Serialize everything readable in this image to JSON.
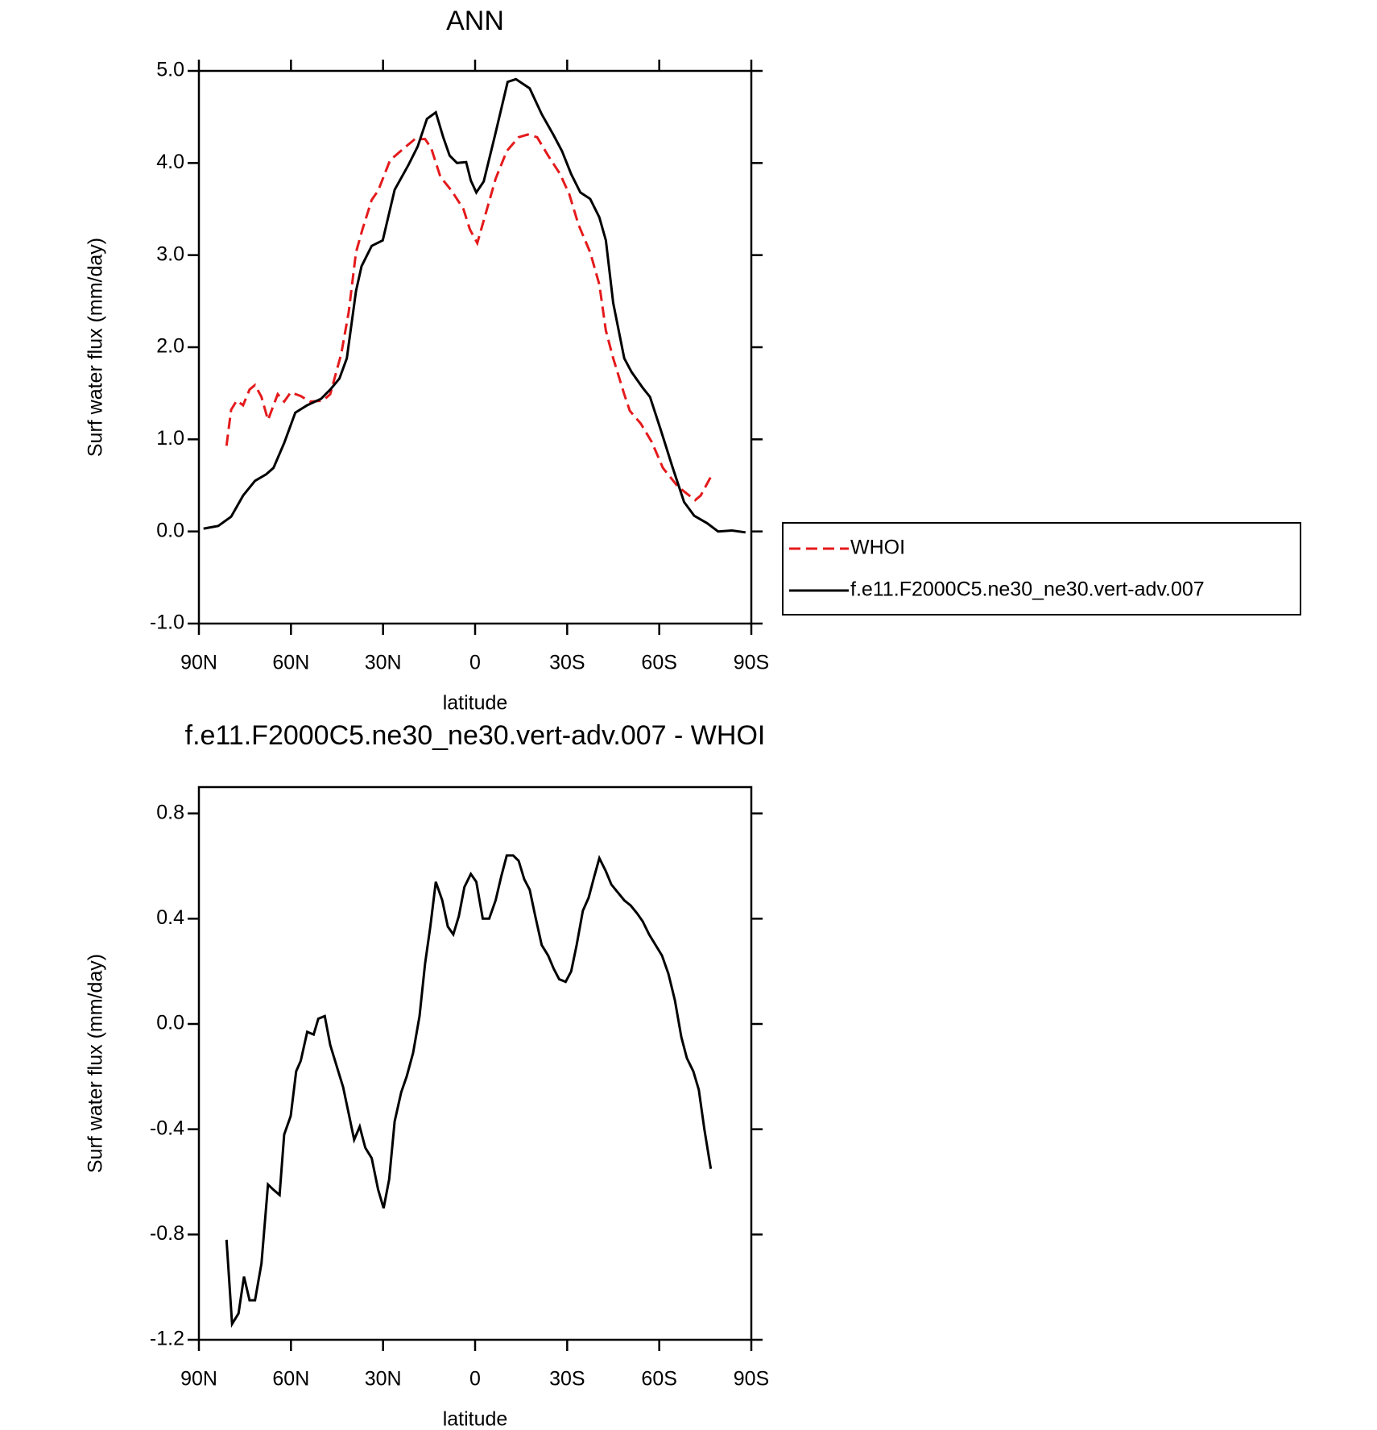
{
  "chart_data": [
    {
      "type": "line",
      "title": "ANN",
      "xlabel": "latitude",
      "ylabel": "Surf water flux (mm/day)",
      "xlim": [
        90,
        -90
      ],
      "xticks": [
        {
          "value": 90,
          "label": "90N"
        },
        {
          "value": 60,
          "label": "60N"
        },
        {
          "value": 30,
          "label": "30N"
        },
        0,
        {
          "value": -30,
          "label": "30S"
        },
        {
          "value": -60,
          "label": "60S"
        },
        {
          "value": -90,
          "label": "90S"
        }
      ],
      "ylim": [
        -1,
        5
      ],
      "yticks": [
        {
          "value": -1,
          "label": "-1.0"
        },
        {
          "value": 0,
          "label": "0.0"
        },
        {
          "value": 1,
          "label": "1.0"
        },
        {
          "value": 2,
          "label": "2.0"
        },
        {
          "value": 3,
          "label": "3.0"
        },
        {
          "value": 4,
          "label": "4.0"
        },
        {
          "value": 5,
          "label": "5.0"
        }
      ],
      "legend": "outside right",
      "series": [
        {
          "name": "WHOI",
          "color": "#e41a1c",
          "dash": true,
          "x": [
            81.0,
            79.5,
            77.7,
            75.6,
            73.5,
            71.7,
            69.6,
            67.5,
            64.3,
            62.2,
            60.1,
            56.8,
            53.8,
            49.6,
            47.2,
            43.6,
            41.2,
            38.8,
            36.7,
            33.7,
            31.6,
            27.7,
            23.2,
            19.6,
            16.3,
            14.3,
            11.3,
            7.7,
            3.8,
            1.7,
            -0.7,
            -3.7,
            -6.7,
            -10.3,
            -14.2,
            -17.2,
            -20.2,
            -23.8,
            -27.7,
            -30.7,
            -33.7,
            -37.5,
            -40.5,
            -42.6,
            -45.0,
            -48.6,
            -50.4,
            -54.0,
            -57.6,
            -61.2,
            -66.0,
            -69.0,
            -71.7,
            -73.5,
            -77.1
          ],
          "values": [
            0.93,
            1.32,
            1.42,
            1.37,
            1.54,
            1.59,
            1.46,
            1.21,
            1.49,
            1.41,
            1.51,
            1.47,
            1.41,
            1.42,
            1.49,
            1.93,
            2.38,
            3.03,
            3.28,
            3.6,
            3.7,
            4.03,
            4.16,
            4.26,
            4.26,
            4.16,
            3.85,
            3.7,
            3.5,
            3.28,
            3.13,
            3.48,
            3.83,
            4.13,
            4.28,
            4.31,
            4.28,
            4.08,
            3.88,
            3.66,
            3.33,
            3.03,
            2.68,
            2.18,
            1.88,
            1.49,
            1.31,
            1.17,
            0.97,
            0.69,
            0.49,
            0.41,
            0.34,
            0.39,
            0.61
          ]
        },
        {
          "name": "f.e11.F2000C5.ne30_ne30.vert-adv.007",
          "color": "#000000",
          "dash": false,
          "x": [
            88.5,
            83.7,
            79.5,
            75.6,
            71.7,
            68.1,
            65.7,
            62.2,
            58.6,
            54.7,
            50.2,
            47.2,
            44.2,
            41.8,
            38.8,
            37.0,
            33.7,
            30.1,
            26.2,
            21.7,
            18.7,
            15.7,
            12.8,
            10.4,
            8.3,
            5.9,
            2.9,
            1.4,
            -0.4,
            -2.8,
            -6.7,
            -10.6,
            -13.3,
            -17.8,
            -21.7,
            -25.6,
            -28.3,
            -31.3,
            -34.3,
            -37.5,
            -40.5,
            -42.6,
            -45.0,
            -48.6,
            -51.0,
            -54.6,
            -57.0,
            -60.6,
            -64.2,
            -68.1,
            -71.4,
            -75.6,
            -79.2,
            -83.7,
            -88.1
          ],
          "values": [
            0.03,
            0.06,
            0.16,
            0.39,
            0.55,
            0.62,
            0.69,
            0.96,
            1.29,
            1.37,
            1.44,
            1.54,
            1.66,
            1.88,
            2.61,
            2.88,
            3.1,
            3.16,
            3.71,
            3.98,
            4.18,
            4.48,
            4.55,
            4.28,
            4.08,
            4.0,
            4.01,
            3.81,
            3.68,
            3.8,
            4.33,
            4.88,
            4.91,
            4.81,
            4.53,
            4.3,
            4.13,
            3.88,
            3.68,
            3.61,
            3.41,
            3.16,
            2.48,
            1.88,
            1.73,
            1.56,
            1.46,
            1.09,
            0.71,
            0.32,
            0.17,
            0.09,
            0.0,
            0.01,
            -0.01
          ]
        }
      ]
    },
    {
      "type": "line",
      "title": "f.e11.F2000C5.ne30_ne30.vert-adv.007 - WHOI",
      "xlabel": "latitude",
      "ylabel": "Surf water flux (mm/day)",
      "xlim": [
        90,
        -90
      ],
      "xticks": [
        {
          "value": 90,
          "label": "90N"
        },
        {
          "value": 60,
          "label": "60N"
        },
        {
          "value": 30,
          "label": "30N"
        },
        0,
        {
          "value": -30,
          "label": "30S"
        },
        {
          "value": -60,
          "label": "60S"
        },
        {
          "value": -90,
          "label": "90S"
        }
      ],
      "ylim": [
        -1.2,
        0.9
      ],
      "yticks": [
        -1.2,
        -0.8,
        -0.4,
        {
          "value": 0,
          "label": "0.0"
        },
        0.4,
        0.8
      ],
      "series": [
        {
          "color": "#000000",
          "dash": false,
          "x": [
            81.0,
            79.2,
            77.1,
            75.3,
            73.5,
            71.7,
            69.6,
            67.5,
            65.7,
            63.7,
            62.2,
            60.1,
            58.3,
            56.8,
            54.7,
            52.6,
            51.1,
            49.0,
            47.2,
            45.1,
            43.0,
            41.2,
            39.4,
            37.6,
            35.8,
            33.7,
            31.6,
            29.8,
            28.0,
            26.2,
            24.1,
            22.3,
            20.2,
            18.1,
            16.3,
            14.6,
            12.8,
            10.7,
            8.9,
            7.1,
            5.3,
            3.5,
            1.4,
            -0.4,
            -2.5,
            -4.6,
            -6.7,
            -8.5,
            -10.3,
            -12.4,
            -14.2,
            -16.0,
            -17.8,
            -19.6,
            -21.7,
            -23.8,
            -25.6,
            -27.4,
            -29.5,
            -31.3,
            -33.1,
            -35.1,
            -37.0,
            -38.8,
            -40.5,
            -42.6,
            -44.4,
            -46.5,
            -48.6,
            -50.7,
            -52.8,
            -54.6,
            -56.7,
            -58.8,
            -60.9,
            -63.0,
            -65.1,
            -67.2,
            -69.0,
            -71.1,
            -72.9,
            -74.7,
            -76.8
          ],
          "values": [
            -0.82,
            -1.14,
            -1.1,
            -0.96,
            -1.05,
            -1.05,
            -0.91,
            -0.61,
            -0.63,
            -0.65,
            -0.42,
            -0.35,
            -0.18,
            -0.14,
            -0.03,
            -0.04,
            0.02,
            0.03,
            -0.08,
            -0.16,
            -0.24,
            -0.34,
            -0.44,
            -0.39,
            -0.47,
            -0.51,
            -0.63,
            -0.7,
            -0.59,
            -0.37,
            -0.26,
            -0.2,
            -0.11,
            0.03,
            0.23,
            0.37,
            0.54,
            0.47,
            0.37,
            0.34,
            0.41,
            0.52,
            0.57,
            0.54,
            0.4,
            0.4,
            0.47,
            0.56,
            0.64,
            0.64,
            0.62,
            0.55,
            0.51,
            0.41,
            0.3,
            0.26,
            0.21,
            0.17,
            0.16,
            0.2,
            0.3,
            0.43,
            0.48,
            0.56,
            0.63,
            0.58,
            0.53,
            0.5,
            0.47,
            0.45,
            0.42,
            0.39,
            0.34,
            0.3,
            0.26,
            0.19,
            0.09,
            -0.05,
            -0.13,
            -0.18,
            -0.25,
            -0.4,
            -0.55
          ]
        }
      ]
    }
  ]
}
